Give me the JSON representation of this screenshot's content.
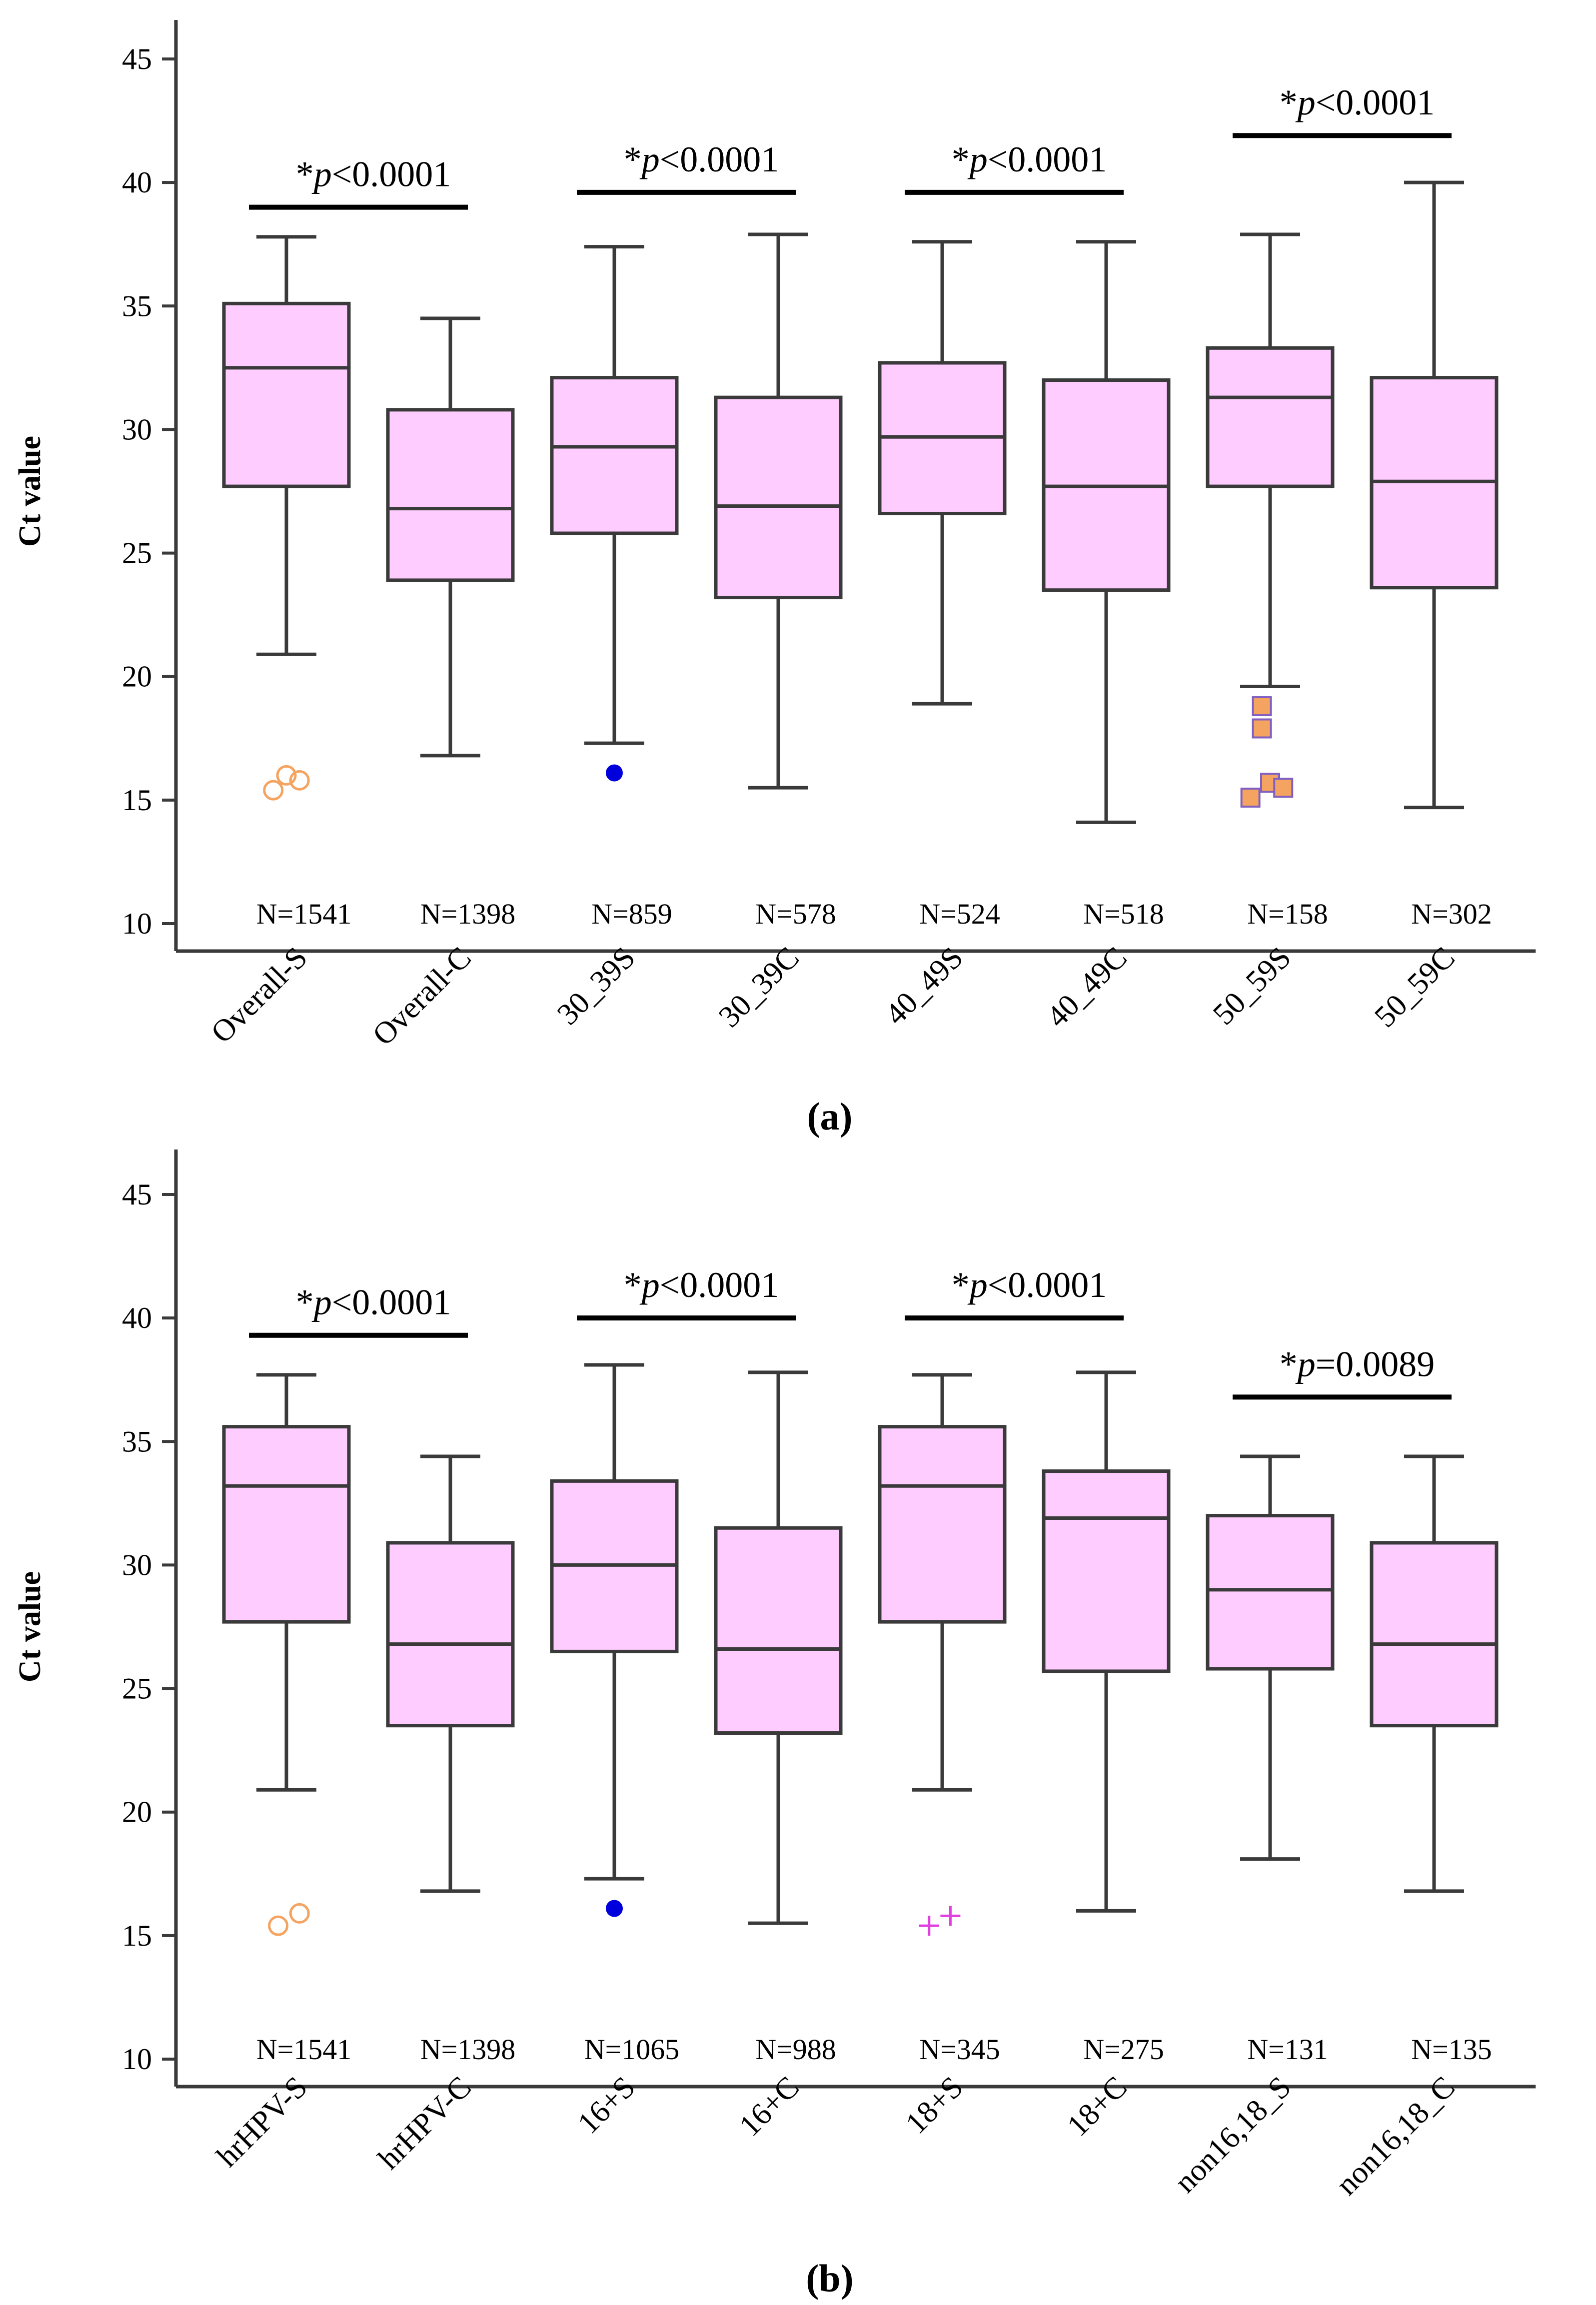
{
  "chart_data": [
    {
      "panel": "(a)",
      "type": "box",
      "ylabel": "Ct value",
      "ylim": [
        10,
        45
      ],
      "yticks": [
        10,
        15,
        20,
        25,
        30,
        35,
        40,
        45
      ],
      "categories": [
        "Overall-S",
        "Overall-C",
        "30_39S",
        "30_39C",
        "40_49S",
        "40_49C",
        "50_59S",
        "50_59C"
      ],
      "n_labels": [
        "N=1541",
        "N=1398",
        "N=859",
        "N=578",
        "N=524",
        "N=518",
        "N=158",
        "N=302"
      ],
      "boxes": [
        {
          "whisker_low": 20.9,
          "q1": 27.7,
          "median": 32.5,
          "q3": 35.1,
          "whisker_high": 37.8
        },
        {
          "whisker_low": 16.8,
          "q1": 23.9,
          "median": 26.8,
          "q3": 30.8,
          "whisker_high": 34.5
        },
        {
          "whisker_low": 17.3,
          "q1": 25.8,
          "median": 29.3,
          "q3": 32.1,
          "whisker_high": 37.4
        },
        {
          "whisker_low": 15.5,
          "q1": 23.2,
          "median": 26.9,
          "q3": 31.3,
          "whisker_high": 37.9
        },
        {
          "whisker_low": 18.9,
          "q1": 26.6,
          "median": 29.7,
          "q3": 32.7,
          "whisker_high": 37.6
        },
        {
          "whisker_low": 14.1,
          "q1": 23.5,
          "median": 27.7,
          "q3": 32.0,
          "whisker_high": 37.6
        },
        {
          "whisker_low": 19.6,
          "q1": 27.7,
          "median": 31.3,
          "q3": 33.3,
          "whisker_high": 37.9
        },
        {
          "whisker_low": 14.7,
          "q1": 23.6,
          "median": 27.9,
          "q3": 32.1,
          "whisker_high": 40.0
        }
      ],
      "outliers": [
        {
          "category": 0,
          "marker": "circle-open",
          "color": "#f4a460",
          "points": [
            [
              -0.08,
              15.4
            ],
            [
              0.0,
              16.0
            ],
            [
              0.08,
              15.8
            ]
          ]
        },
        {
          "category": 2,
          "marker": "dot",
          "color": "#0000dd",
          "points": [
            [
              0.0,
              16.1
            ]
          ]
        },
        {
          "category": 6,
          "marker": "square",
          "color": "#f4a460",
          "points": [
            [
              -0.05,
              18.8
            ],
            [
              -0.05,
              17.9
            ],
            [
              0.0,
              15.7
            ],
            [
              0.08,
              15.5
            ],
            [
              -0.12,
              15.1
            ]
          ]
        }
      ],
      "significance": [
        {
          "from": 0,
          "to": 1,
          "y": 39.0,
          "prefix": "*",
          "italic": "p",
          "rest": "<0.0001"
        },
        {
          "from": 2,
          "to": 3,
          "y": 39.6,
          "prefix": "*",
          "italic": "p",
          "rest": "<0.0001"
        },
        {
          "from": 4,
          "to": 5,
          "y": 39.6,
          "prefix": "*",
          "italic": "p",
          "rest": "<0.0001"
        },
        {
          "from": 6,
          "to": 7,
          "y": 41.9,
          "prefix": "*",
          "italic": "p",
          "rest": "<0.0001"
        }
      ]
    },
    {
      "panel": "(b)",
      "type": "box",
      "ylabel": "Ct value",
      "ylim": [
        10,
        45
      ],
      "yticks": [
        10,
        15,
        20,
        25,
        30,
        35,
        40,
        45
      ],
      "categories": [
        "hrHPV-S",
        "hrHPV-C",
        "16+S",
        "16+C",
        "18+S",
        "18+C",
        "non16,18_S",
        "non16,18_C"
      ],
      "n_labels": [
        "N=1541",
        "N=1398",
        "N=1065",
        "N=988",
        "N=345",
        "N=275",
        "N=131",
        "N=135"
      ],
      "boxes": [
        {
          "whisker_low": 20.9,
          "q1": 27.7,
          "median": 33.2,
          "q3": 35.6,
          "whisker_high": 37.7
        },
        {
          "whisker_low": 16.8,
          "q1": 23.5,
          "median": 26.8,
          "q3": 30.9,
          "whisker_high": 34.4
        },
        {
          "whisker_low": 17.3,
          "q1": 26.5,
          "median": 30.0,
          "q3": 33.4,
          "whisker_high": 38.1
        },
        {
          "whisker_low": 15.5,
          "q1": 23.2,
          "median": 26.6,
          "q3": 31.5,
          "whisker_high": 37.8
        },
        {
          "whisker_low": 20.9,
          "q1": 27.7,
          "median": 33.2,
          "q3": 35.6,
          "whisker_high": 37.7
        },
        {
          "whisker_low": 16.0,
          "q1": 25.7,
          "median": 31.9,
          "q3": 33.8,
          "whisker_high": 37.8
        },
        {
          "whisker_low": 18.1,
          "q1": 25.8,
          "median": 29.0,
          "q3": 32.0,
          "whisker_high": 34.4
        },
        {
          "whisker_low": 16.8,
          "q1": 23.5,
          "median": 26.8,
          "q3": 30.9,
          "whisker_high": 34.4
        }
      ],
      "outliers": [
        {
          "category": 0,
          "marker": "circle-open",
          "color": "#f4a460",
          "points": [
            [
              -0.05,
              15.4
            ],
            [
              0.08,
              15.9
            ]
          ]
        },
        {
          "category": 2,
          "marker": "dot",
          "color": "#0000dd",
          "points": [
            [
              0.0,
              16.1
            ]
          ]
        },
        {
          "category": 4,
          "marker": "plus",
          "color": "#e040e0",
          "points": [
            [
              -0.08,
              15.4
            ],
            [
              0.05,
              15.8
            ]
          ]
        }
      ],
      "significance": [
        {
          "from": 0,
          "to": 1,
          "y": 39.3,
          "prefix": "*",
          "italic": "p",
          "rest": "<0.0001"
        },
        {
          "from": 2,
          "to": 3,
          "y": 40.0,
          "prefix": "*",
          "italic": "p",
          "rest": "<0.0001"
        },
        {
          "from": 4,
          "to": 5,
          "y": 40.0,
          "prefix": "*",
          "italic": "p",
          "rest": "<0.0001"
        },
        {
          "from": 6,
          "to": 7,
          "y": 36.8,
          "prefix": "*",
          "italic": "p",
          "rest": "=0.0089"
        }
      ]
    }
  ],
  "colors": {
    "box_fill": "#ffccff",
    "box_stroke": "#3a3a3a",
    "axis": "#3a3a3a",
    "significance_bar": "#000000"
  }
}
